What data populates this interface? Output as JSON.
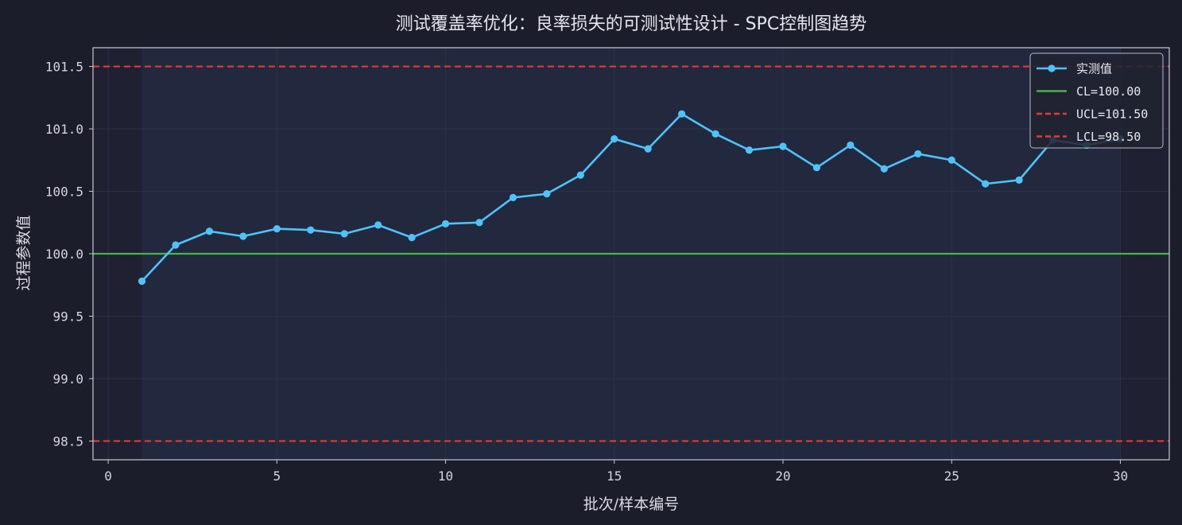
{
  "colors": {
    "background": "#1c1d2b",
    "plot_background": "#202538",
    "series": "#4fc3f7",
    "center_line": "#4caf50",
    "limit_line": "#e53935",
    "axis": "#c8c8d0",
    "grid": "#2c3146"
  },
  "chart_data": {
    "type": "line",
    "title": "测试覆盖率优化：良率损失的可测试性设计 - SPC控制图趋势",
    "xlabel": "批次/样本编号",
    "ylabel": "过程参数值",
    "xlim": [
      -0.45,
      31.45
    ],
    "ylim": [
      98.35,
      101.65
    ],
    "x_ticks": [
      0,
      5,
      10,
      15,
      20,
      25,
      30
    ],
    "x_tick_labels": [
      "0",
      "5",
      "10",
      "15",
      "20",
      "25",
      "30"
    ],
    "y_ticks": [
      98.5,
      99.0,
      99.5,
      100.0,
      100.5,
      101.0,
      101.5
    ],
    "y_tick_labels": [
      "98.5",
      "99.0",
      "99.5",
      "100.0",
      "100.5",
      "101.0",
      "101.5"
    ],
    "grid": true,
    "shaded_x_range": [
      1,
      30
    ],
    "legend_position": "top-right",
    "series": [
      {
        "name": "实测值",
        "x": [
          1,
          2,
          3,
          4,
          5,
          6,
          7,
          8,
          9,
          10,
          11,
          12,
          13,
          14,
          15,
          16,
          17,
          18,
          19,
          20,
          21,
          22,
          23,
          24,
          25,
          26,
          27,
          28,
          29,
          30
        ],
        "values": [
          99.78,
          100.07,
          100.18,
          100.14,
          100.2,
          100.19,
          100.16,
          100.23,
          100.13,
          100.24,
          100.25,
          100.45,
          100.48,
          100.63,
          100.92,
          100.84,
          101.12,
          100.96,
          100.83,
          100.86,
          100.69,
          100.87,
          100.68,
          100.8,
          100.75,
          100.56,
          100.59,
          100.91,
          100.87,
          100.92
        ]
      }
    ],
    "control_lines": [
      {
        "name": "CL=100.00",
        "value": 100.0,
        "style": "solid",
        "color": "#4caf50"
      },
      {
        "name": "UCL=101.50",
        "value": 101.5,
        "style": "dashed",
        "color": "#e53935"
      },
      {
        "name": "LCL=98.50",
        "value": 98.5,
        "style": "dashed",
        "color": "#e53935"
      }
    ]
  }
}
